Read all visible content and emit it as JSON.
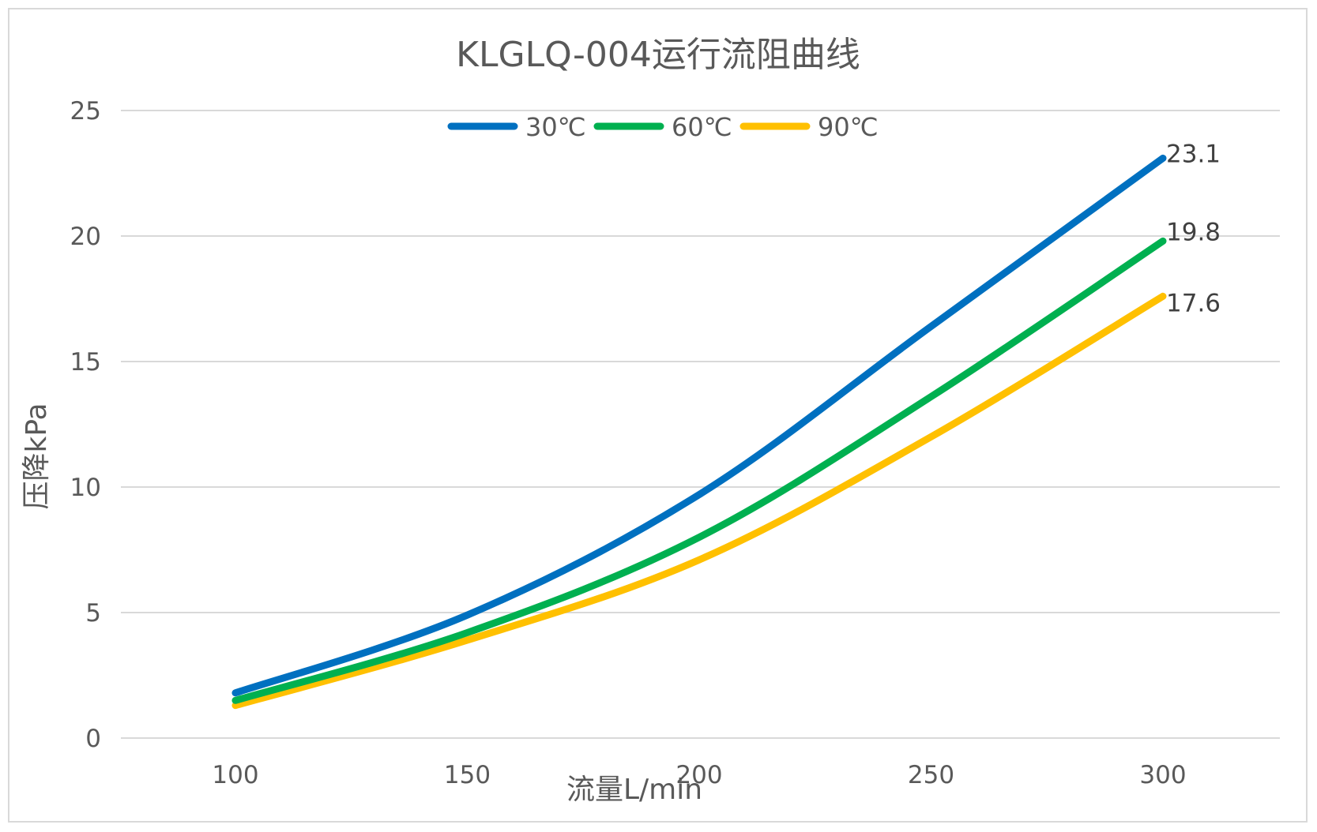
{
  "chart_data": {
    "type": "line",
    "title": "KLGLQ-004运行流阻曲线",
    "xlabel": "流量L/min",
    "ylabel": "压降kPa",
    "x": [
      100,
      150,
      200,
      250,
      300
    ],
    "x_tick_labels": [
      "100",
      "150",
      "200",
      "250",
      "300"
    ],
    "ylim": [
      0,
      25
    ],
    "y_ticks": [
      0,
      5,
      10,
      15,
      20,
      25
    ],
    "y_tick_labels": [
      "0",
      "5",
      "10",
      "15",
      "20",
      "25"
    ],
    "grid": true,
    "legend_position": "top-center",
    "series": [
      {
        "name": "30℃",
        "color": "#0070c0",
        "values": [
          1.8,
          4.9,
          9.7,
          16.4,
          23.1
        ],
        "end_label": "23.1"
      },
      {
        "name": "60℃",
        "color": "#00b050",
        "values": [
          1.5,
          4.2,
          8.0,
          13.6,
          19.8
        ],
        "end_label": "19.8"
      },
      {
        "name": "90℃",
        "color": "#ffc000",
        "values": [
          1.3,
          3.9,
          7.1,
          12.0,
          17.6
        ],
        "end_label": "17.6"
      }
    ]
  }
}
